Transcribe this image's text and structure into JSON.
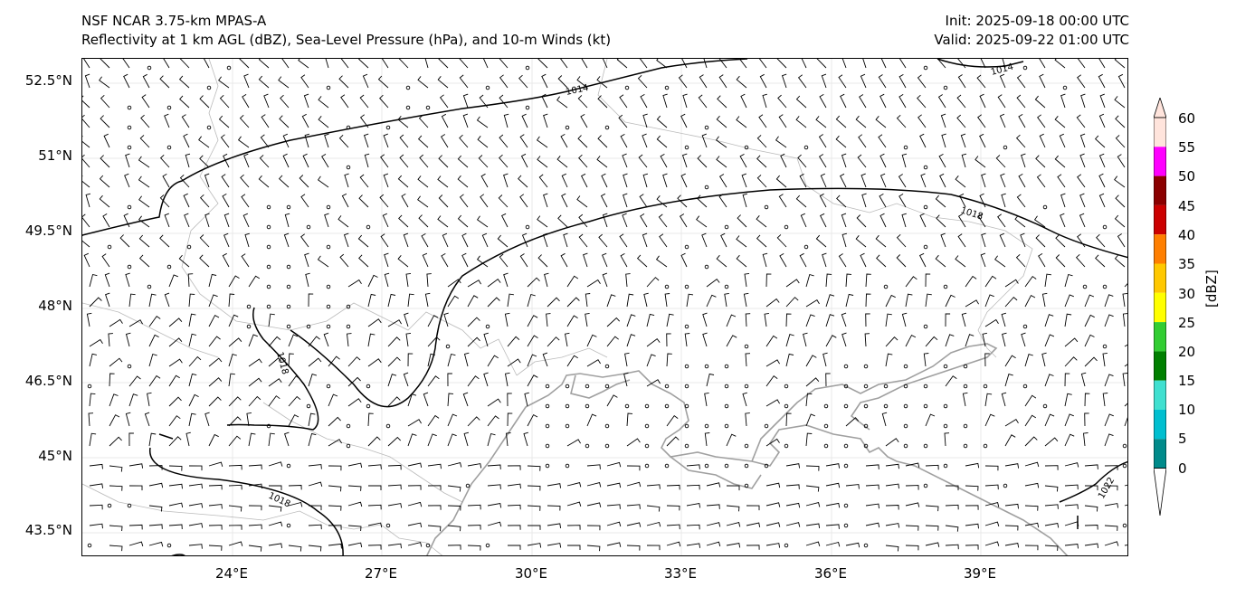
{
  "header": {
    "title_line1": "NSF NCAR 3.75-km MPAS-A",
    "title_line2": "Reflectivity at 1 km AGL (dBZ), Sea-Level Pressure (hPa), and 10-m Winds (kt)",
    "init": "Init: 2025-09-18 00:00 UTC",
    "valid": "Valid: 2025-09-22 01:00 UTC"
  },
  "map": {
    "lat_labels": [
      "52.5°N",
      "51°N",
      "49.5°N",
      "48°N",
      "46.5°N",
      "45°N",
      "43.5°N"
    ],
    "lon_labels": [
      "24°E",
      "27°E",
      "30°E",
      "33°E",
      "36°E",
      "39°E"
    ],
    "contour_labels": [
      "1014",
      "1014",
      "1018",
      "1018",
      "1018",
      "1022"
    ],
    "coastline_color": "#a0a0a0",
    "border_color": "#bbbbbb",
    "isobar_color": "#000000"
  },
  "colorbar": {
    "title": "[dBZ]",
    "ticks": [
      "60",
      "55",
      "50",
      "45",
      "40",
      "35",
      "30",
      "25",
      "20",
      "15",
      "10",
      "5",
      "0"
    ],
    "colors": [
      "#ffe4dc",
      "#ff00ff",
      "#8b0000",
      "#cc0000",
      "#ff7f00",
      "#ffc800",
      "#ffff00",
      "#32cd32",
      "#008000",
      "#40e0d0",
      "#00bfd0",
      "#008b8b",
      "#ffffff"
    ]
  }
}
